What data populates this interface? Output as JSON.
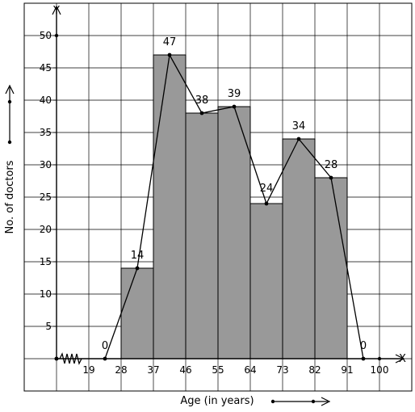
{
  "chart_data": {
    "type": "bar",
    "subtype": "histogram-with-frequency-polygon",
    "xlabel": "Age (in years)",
    "ylabel": "No. of doctors",
    "x_axis_letter": "X",
    "y_axis_letter": "Y",
    "x_ticks": [
      "19",
      "28",
      "37",
      "46",
      "55",
      "64",
      "73",
      "82",
      "91",
      "100"
    ],
    "y_ticks": [
      "5",
      "10",
      "15",
      "20",
      "25",
      "30",
      "35",
      "40",
      "45",
      "50"
    ],
    "ylim": [
      0,
      50
    ],
    "grid": true,
    "bins": [
      {
        "range": "28-37",
        "value": 14
      },
      {
        "range": "37-46",
        "value": 47
      },
      {
        "range": "46-55",
        "value": 38
      },
      {
        "range": "55-64",
        "value": 39
      },
      {
        "range": "64-73",
        "value": 24
      },
      {
        "range": "73-82",
        "value": 34
      },
      {
        "range": "82-91",
        "value": 28
      }
    ],
    "polygon": {
      "x": [
        23.5,
        32.5,
        41.5,
        50.5,
        59.5,
        68.5,
        77.5,
        86.5,
        95.5
      ],
      "y": [
        0,
        14,
        47,
        38,
        39,
        24,
        34,
        28,
        0
      ],
      "labels": [
        "0",
        "14",
        "47",
        "38",
        "39",
        "24",
        "34",
        "28",
        "0"
      ]
    },
    "colors": {
      "bar": "#999999",
      "grid": "#000000"
    }
  }
}
